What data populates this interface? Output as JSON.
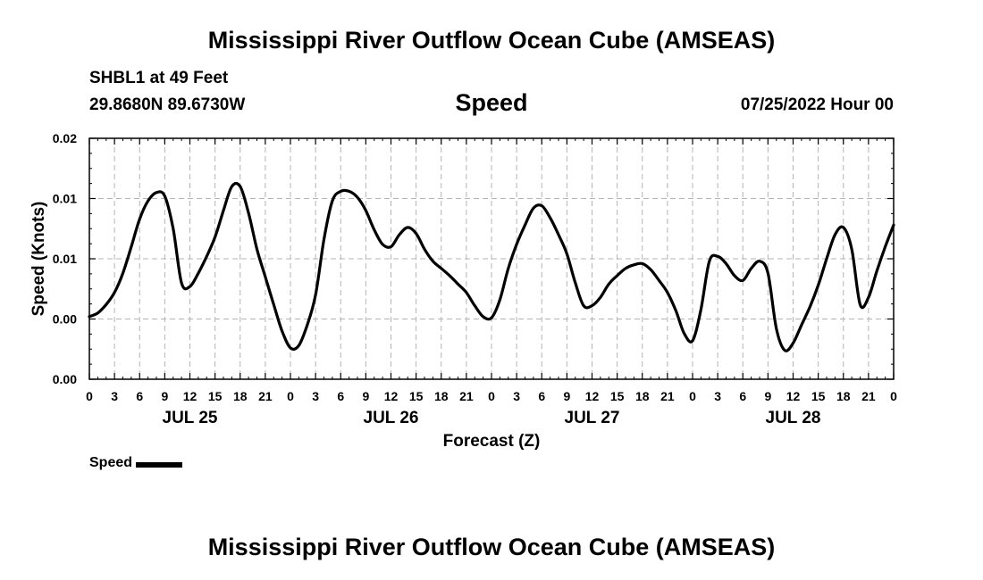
{
  "header": {
    "title": "Mississippi River Outflow Ocean Cube (AMSEAS)",
    "station": "SHBL1 at 49 Feet",
    "coords": "29.8680N  89.6730W",
    "variable": "Speed",
    "datetime": "07/25/2022 Hour 00"
  },
  "footer": {
    "title": "Mississippi River Outflow Ocean Cube (AMSEAS)"
  },
  "legend": {
    "label": "Speed"
  },
  "chart_data": {
    "type": "line",
    "xlabel": "Forecast (Z)",
    "ylabel": "Speed (Knots)",
    "xlim": [
      0,
      96
    ],
    "ylim": [
      0.0,
      0.02
    ],
    "grid": true,
    "y_tick_values": [
      0.0,
      0.005,
      0.01,
      0.015,
      0.02
    ],
    "y_tick_labels": [
      "0.00",
      "0.00",
      "0.01",
      "0.01",
      "0.02"
    ],
    "x_tick_hours": [
      0,
      3,
      6,
      9,
      12,
      15,
      18,
      21,
      24,
      27,
      30,
      33,
      36,
      39,
      42,
      45,
      48,
      51,
      54,
      57,
      60,
      63,
      66,
      69,
      72,
      75,
      78,
      81,
      84,
      87,
      90,
      93,
      96
    ],
    "x_tick_labels": [
      "0",
      "3",
      "6",
      "9",
      "12",
      "15",
      "18",
      "21",
      "0",
      "3",
      "6",
      "9",
      "12",
      "15",
      "18",
      "21",
      "0",
      "3",
      "6",
      "9",
      "12",
      "15",
      "18",
      "21",
      "0",
      "3",
      "6",
      "9",
      "12",
      "15",
      "18",
      "21",
      "0"
    ],
    "day_labels": [
      {
        "hour": 12,
        "label": "JUL 25"
      },
      {
        "hour": 36,
        "label": "JUL 26"
      },
      {
        "hour": 60,
        "label": "JUL 27"
      },
      {
        "hour": 84,
        "label": "JUL 28"
      }
    ],
    "series": [
      {
        "name": "Speed",
        "color": "#000000",
        "x": [
          0,
          1,
          2,
          3,
          4,
          5,
          6,
          7,
          8,
          9,
          10,
          11,
          12,
          13,
          14,
          15,
          16,
          17,
          18,
          19,
          20,
          21,
          22,
          23,
          24,
          25,
          26,
          27,
          28,
          29,
          30,
          31,
          32,
          33,
          34,
          35,
          36,
          37,
          38,
          39,
          40,
          41,
          42,
          43,
          44,
          45,
          46,
          47,
          48,
          49,
          50,
          51,
          52,
          53,
          54,
          55,
          56,
          57,
          58,
          59,
          60,
          61,
          62,
          63,
          64,
          65,
          66,
          67,
          68,
          69,
          70,
          71,
          72,
          73,
          74,
          75,
          76,
          77,
          78,
          79,
          80,
          81,
          82,
          83,
          84,
          85,
          86,
          87,
          88,
          89,
          90,
          91,
          92,
          93,
          94,
          95,
          96
        ],
        "values": [
          0.0052,
          0.0055,
          0.0062,
          0.0072,
          0.0088,
          0.011,
          0.0133,
          0.0148,
          0.0155,
          0.0152,
          0.0125,
          0.008,
          0.0077,
          0.0088,
          0.0102,
          0.0118,
          0.014,
          0.016,
          0.016,
          0.0138,
          0.0108,
          0.0085,
          0.0062,
          0.004,
          0.0026,
          0.0028,
          0.0045,
          0.007,
          0.0116,
          0.0148,
          0.0156,
          0.0156,
          0.0151,
          0.014,
          0.0124,
          0.0112,
          0.011,
          0.012,
          0.0126,
          0.0121,
          0.0108,
          0.0098,
          0.0092,
          0.0086,
          0.0079,
          0.0072,
          0.0061,
          0.0052,
          0.0051,
          0.0066,
          0.0092,
          0.0112,
          0.0128,
          0.0142,
          0.0144,
          0.0134,
          0.012,
          0.0104,
          0.008,
          0.0061,
          0.0061,
          0.0068,
          0.0079,
          0.0086,
          0.0092,
          0.0095,
          0.0096,
          0.0091,
          0.0082,
          0.0072,
          0.0057,
          0.0038,
          0.0032,
          0.0058,
          0.0098,
          0.0102,
          0.0096,
          0.0086,
          0.0082,
          0.0092,
          0.0098,
          0.0088,
          0.0042,
          0.0024,
          0.003,
          0.0045,
          0.006,
          0.0078,
          0.01,
          0.012,
          0.0126,
          0.0108,
          0.0062,
          0.0068,
          0.009,
          0.011,
          0.0128
        ]
      }
    ]
  }
}
